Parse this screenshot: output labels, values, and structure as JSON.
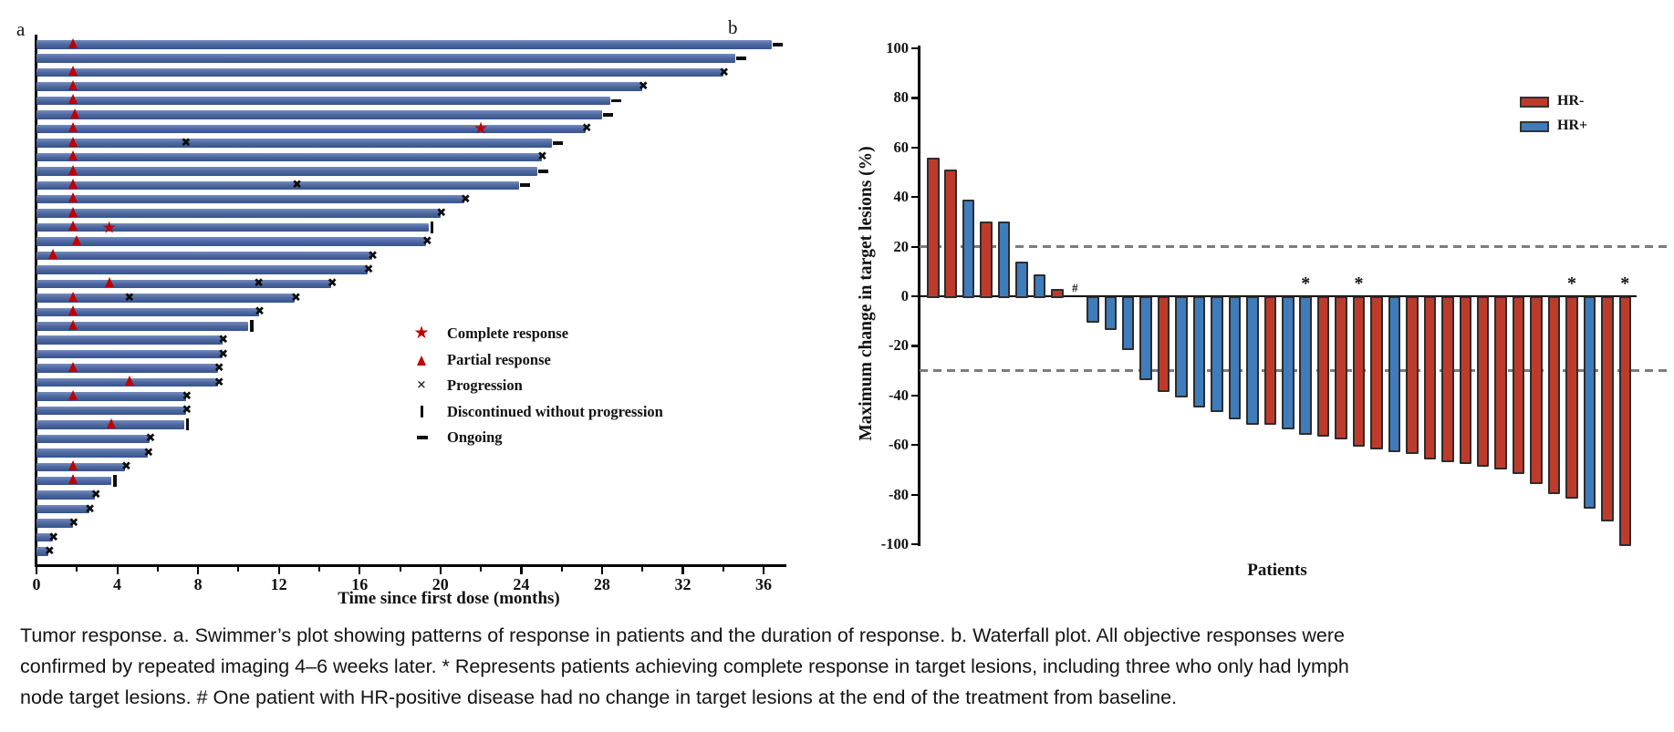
{
  "figure_title": "Tumor response",
  "caption": {
    "lines": [
      "Tumor response. a. Swimmer’s plot showing patterns of response in patients and the duration of response. b. Waterfall plot. All objective responses were",
      "confirmed by repeated imaging 4–6 weeks later. * Represents patients achieving complete response in target lesions, including three who only had lymph",
      "node target lesions. # One patient with HR-positive disease had no change in target lesions at the end of the treatment from baseline."
    ]
  },
  "colors": {
    "swimmer_bar": "#3B5EA2",
    "hr_negative": "#BE3B2C",
    "hr_positive": "#3E7CBB",
    "marker_red": "#C00000",
    "marker_black": "#0D0D0D",
    "reference_dash_gray": "#7C7C7C"
  },
  "chart_data": [
    {
      "type": "swimmer",
      "panel_label": "a",
      "xlabel": "Time since first dose (months)",
      "x_ticks": [
        0,
        4,
        8,
        12,
        16,
        20,
        24,
        28,
        32,
        36
      ],
      "x_minor_ticks": [
        2,
        6,
        10,
        14,
        18,
        22,
        26,
        30,
        34
      ],
      "xlim": [
        0,
        37
      ],
      "grid": false,
      "legend_position": "center-right",
      "legend": [
        {
          "marker": "star",
          "label": "Complete response"
        },
        {
          "marker": "triangle",
          "label": "Partial response"
        },
        {
          "marker": "x",
          "label": "Progression"
        },
        {
          "marker": "bar",
          "label": "Discontinued without progression"
        },
        {
          "marker": "dash",
          "label": "Ongoing"
        }
      ],
      "patients": [
        {
          "months": 36.4,
          "end": "ongoing",
          "pr": [
            1.8
          ],
          "cr": [],
          "x": []
        },
        {
          "months": 34.6,
          "end": "ongoing",
          "pr": [],
          "cr": [],
          "x": []
        },
        {
          "months": 34.0,
          "end": "progression",
          "pr": [
            1.8
          ],
          "cr": [],
          "x": []
        },
        {
          "months": 30.0,
          "end": "progression",
          "pr": [
            1.8
          ],
          "cr": [],
          "x": []
        },
        {
          "months": 28.4,
          "end": "ongoing",
          "pr": [
            1.8
          ],
          "cr": [],
          "x": []
        },
        {
          "months": 28.0,
          "end": "ongoing",
          "pr": [
            1.9
          ],
          "cr": [],
          "x": []
        },
        {
          "months": 27.2,
          "end": "progression",
          "pr": [
            1.8
          ],
          "cr": [
            22.0
          ],
          "x": []
        },
        {
          "months": 25.5,
          "end": "ongoing",
          "pr": [
            1.8
          ],
          "cr": [],
          "x": [
            7.4
          ]
        },
        {
          "months": 25.0,
          "end": "progression",
          "pr": [
            1.8
          ],
          "cr": [],
          "x": []
        },
        {
          "months": 24.8,
          "end": "ongoing",
          "pr": [
            1.8
          ],
          "cr": [],
          "x": []
        },
        {
          "months": 23.9,
          "end": "ongoing",
          "pr": [
            1.8
          ],
          "cr": [],
          "x": [
            12.9
          ]
        },
        {
          "months": 21.2,
          "end": "progression",
          "pr": [
            1.8
          ],
          "cr": [],
          "x": []
        },
        {
          "months": 20.0,
          "end": "progression",
          "pr": [
            1.8
          ],
          "cr": [],
          "x": []
        },
        {
          "months": 19.4,
          "end": "discontinued",
          "pr": [
            1.8
          ],
          "cr": [
            3.6
          ],
          "x": []
        },
        {
          "months": 19.3,
          "end": "progression",
          "pr": [
            2.0
          ],
          "cr": [],
          "x": []
        },
        {
          "months": 16.6,
          "end": "progression",
          "pr": [
            0.8
          ],
          "cr": [],
          "x": []
        },
        {
          "months": 16.4,
          "end": "progression",
          "pr": [],
          "cr": [],
          "x": []
        },
        {
          "months": 14.6,
          "end": "progression",
          "pr": [
            3.6
          ],
          "cr": [],
          "x": [
            11.0
          ]
        },
        {
          "months": 12.8,
          "end": "progression",
          "pr": [
            1.8
          ],
          "cr": [],
          "x": [
            4.6
          ]
        },
        {
          "months": 11.0,
          "end": "progression",
          "pr": [
            1.8
          ],
          "cr": [],
          "x": []
        },
        {
          "months": 10.5,
          "end": "discontinued",
          "pr": [
            1.8
          ],
          "cr": [],
          "x": []
        },
        {
          "months": 9.2,
          "end": "progression",
          "pr": [],
          "cr": [],
          "x": []
        },
        {
          "months": 9.2,
          "end": "progression",
          "pr": [],
          "cr": [],
          "x": []
        },
        {
          "months": 9.0,
          "end": "progression",
          "pr": [
            1.8
          ],
          "cr": [],
          "x": []
        },
        {
          "months": 9.0,
          "end": "progression",
          "pr": [
            4.6
          ],
          "cr": [],
          "x": []
        },
        {
          "months": 7.4,
          "end": "progression",
          "pr": [
            1.8
          ],
          "cr": [],
          "x": []
        },
        {
          "months": 7.4,
          "end": "progression",
          "pr": [],
          "cr": [],
          "x": []
        },
        {
          "months": 7.3,
          "end": "discontinued",
          "pr": [
            3.7
          ],
          "cr": [],
          "x": []
        },
        {
          "months": 5.6,
          "end": "progression",
          "pr": [],
          "cr": [],
          "x": []
        },
        {
          "months": 5.5,
          "end": "progression",
          "pr": [],
          "cr": [],
          "x": []
        },
        {
          "months": 4.4,
          "end": "progression",
          "pr": [
            1.8
          ],
          "cr": [],
          "x": []
        },
        {
          "months": 3.7,
          "end": "discontinued",
          "pr": [
            1.8
          ],
          "cr": [],
          "x": []
        },
        {
          "months": 2.9,
          "end": "progression",
          "pr": [],
          "cr": [],
          "x": []
        },
        {
          "months": 2.6,
          "end": "progression",
          "pr": [],
          "cr": [],
          "x": []
        },
        {
          "months": 1.8,
          "end": "progression",
          "pr": [],
          "cr": [],
          "x": []
        },
        {
          "months": 0.8,
          "end": "progression",
          "pr": [],
          "cr": [],
          "x": []
        },
        {
          "months": 0.6,
          "end": "progression",
          "pr": [],
          "cr": [],
          "x": []
        }
      ]
    },
    {
      "type": "bar",
      "subtype": "waterfall",
      "panel_label": "b",
      "ylabel": "Maximum change in target lesions (%)",
      "xlabel": "Patients",
      "y_ticks": [
        100,
        80,
        60,
        40,
        20,
        0,
        -20,
        -40,
        -60,
        -80,
        -100
      ],
      "ylim": [
        -100,
        100
      ],
      "grid": false,
      "reference_lines": [
        20,
        -30
      ],
      "legend_position": "top-right",
      "legend": [
        {
          "label": "HR-",
          "color": "#BE3B2C"
        },
        {
          "label": "HR+",
          "color": "#3E7CBB"
        }
      ],
      "bars": [
        {
          "value": 56,
          "group": "HR-"
        },
        {
          "value": 51,
          "group": "HR-"
        },
        {
          "value": 39,
          "group": "HR+"
        },
        {
          "value": 30,
          "group": "HR-"
        },
        {
          "value": 30,
          "group": "HR+"
        },
        {
          "value": 14,
          "group": "HR+"
        },
        {
          "value": 9,
          "group": "HR+"
        },
        {
          "value": 3,
          "group": "HR-"
        },
        {
          "value": 0,
          "group": "HR+"
        },
        {
          "value": -10,
          "group": "HR+"
        },
        {
          "value": -13,
          "group": "HR+"
        },
        {
          "value": -21,
          "group": "HR+"
        },
        {
          "value": -33,
          "group": "HR+"
        },
        {
          "value": -38,
          "group": "HR-"
        },
        {
          "value": -40,
          "group": "HR+"
        },
        {
          "value": -44,
          "group": "HR+"
        },
        {
          "value": -46,
          "group": "HR+"
        },
        {
          "value": -49,
          "group": "HR+"
        },
        {
          "value": -51,
          "group": "HR+"
        },
        {
          "value": -51,
          "group": "HR-"
        },
        {
          "value": -53,
          "group": "HR+"
        },
        {
          "value": -55,
          "group": "HR+"
        },
        {
          "value": -56,
          "group": "HR-"
        },
        {
          "value": -57,
          "group": "HR-"
        },
        {
          "value": -60,
          "group": "HR-"
        },
        {
          "value": -61,
          "group": "HR-"
        },
        {
          "value": -62,
          "group": "HR+"
        },
        {
          "value": -63,
          "group": "HR-"
        },
        {
          "value": -65,
          "group": "HR-"
        },
        {
          "value": -66,
          "group": "HR-"
        },
        {
          "value": -67,
          "group": "HR-"
        },
        {
          "value": -68,
          "group": "HR-"
        },
        {
          "value": -69,
          "group": "HR-"
        },
        {
          "value": -71,
          "group": "HR-"
        },
        {
          "value": -75,
          "group": "HR-"
        },
        {
          "value": -79,
          "group": "HR-"
        },
        {
          "value": -81,
          "group": "HR-"
        },
        {
          "value": -85,
          "group": "HR+"
        },
        {
          "value": -90,
          "group": "HR-"
        },
        {
          "value": -100,
          "group": "HR-"
        }
      ],
      "asterisk_bar_indices": [
        21,
        24,
        36,
        39
      ],
      "hash_bar_index": 8,
      "annotations": {
        "asterisk": "*",
        "hash": "#"
      }
    }
  ]
}
